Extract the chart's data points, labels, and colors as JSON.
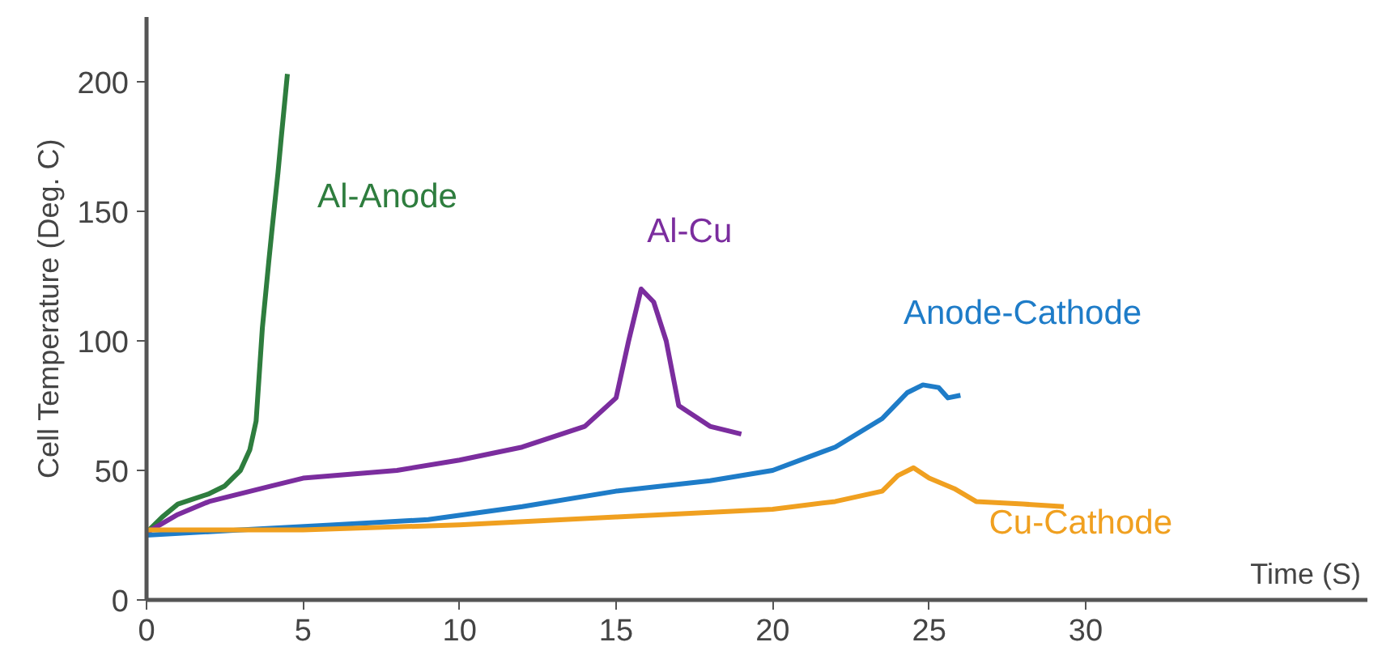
{
  "chart_data": {
    "type": "line",
    "xlabel": "Time (S)",
    "ylabel": "Cell Temperature (Deg. C)",
    "xlim": [
      0,
      39
    ],
    "ylim": [
      0,
      225
    ],
    "xticks": [
      0,
      5,
      10,
      15,
      20,
      25,
      30
    ],
    "yticks": [
      0,
      50,
      100,
      150,
      200
    ],
    "grid": false,
    "legend": false,
    "marker": "none",
    "line_style": "solid",
    "series": [
      {
        "name": "Al-Anode",
        "color": "#2e7d3e",
        "x": [
          0,
          0.5,
          1,
          2,
          2.5,
          3,
          3.3,
          3.5,
          3.7,
          3.9,
          4,
          4.2,
          4.3,
          4.5
        ],
        "values": [
          26,
          32,
          37,
          41,
          44,
          50,
          58,
          69,
          105,
          130,
          142,
          165,
          178,
          203
        ]
      },
      {
        "name": "Al-Cu",
        "color": "#7b2d9e",
        "x": [
          0,
          1,
          2,
          4,
          5,
          8,
          10,
          12,
          14,
          15,
          15.4,
          15.8,
          16.2,
          16.6,
          17,
          18,
          19
        ],
        "values": [
          26,
          33,
          38,
          44,
          47,
          50,
          54,
          59,
          67,
          78,
          100,
          120,
          115,
          100,
          75,
          67,
          64
        ]
      },
      {
        "name": "Anode-Cathode",
        "color": "#1e7cc8",
        "x": [
          0,
          3,
          6,
          9,
          12,
          15,
          18,
          20,
          22,
          23.5,
          24.3,
          24.8,
          25.3,
          25.6,
          26
        ],
        "values": [
          25,
          27,
          29,
          31,
          36,
          42,
          46,
          50,
          59,
          70,
          80,
          83,
          82,
          78,
          79
        ]
      },
      {
        "name": "Cu-Cathode",
        "color": "#f0a020",
        "x": [
          0,
          5,
          10,
          15,
          20,
          22,
          23.5,
          24,
          24.5,
          25,
          25.8,
          26.5,
          28,
          29.3
        ],
        "values": [
          27,
          27,
          29,
          32,
          35,
          38,
          42,
          48,
          51,
          47,
          43,
          38,
          37,
          36
        ]
      }
    ]
  }
}
